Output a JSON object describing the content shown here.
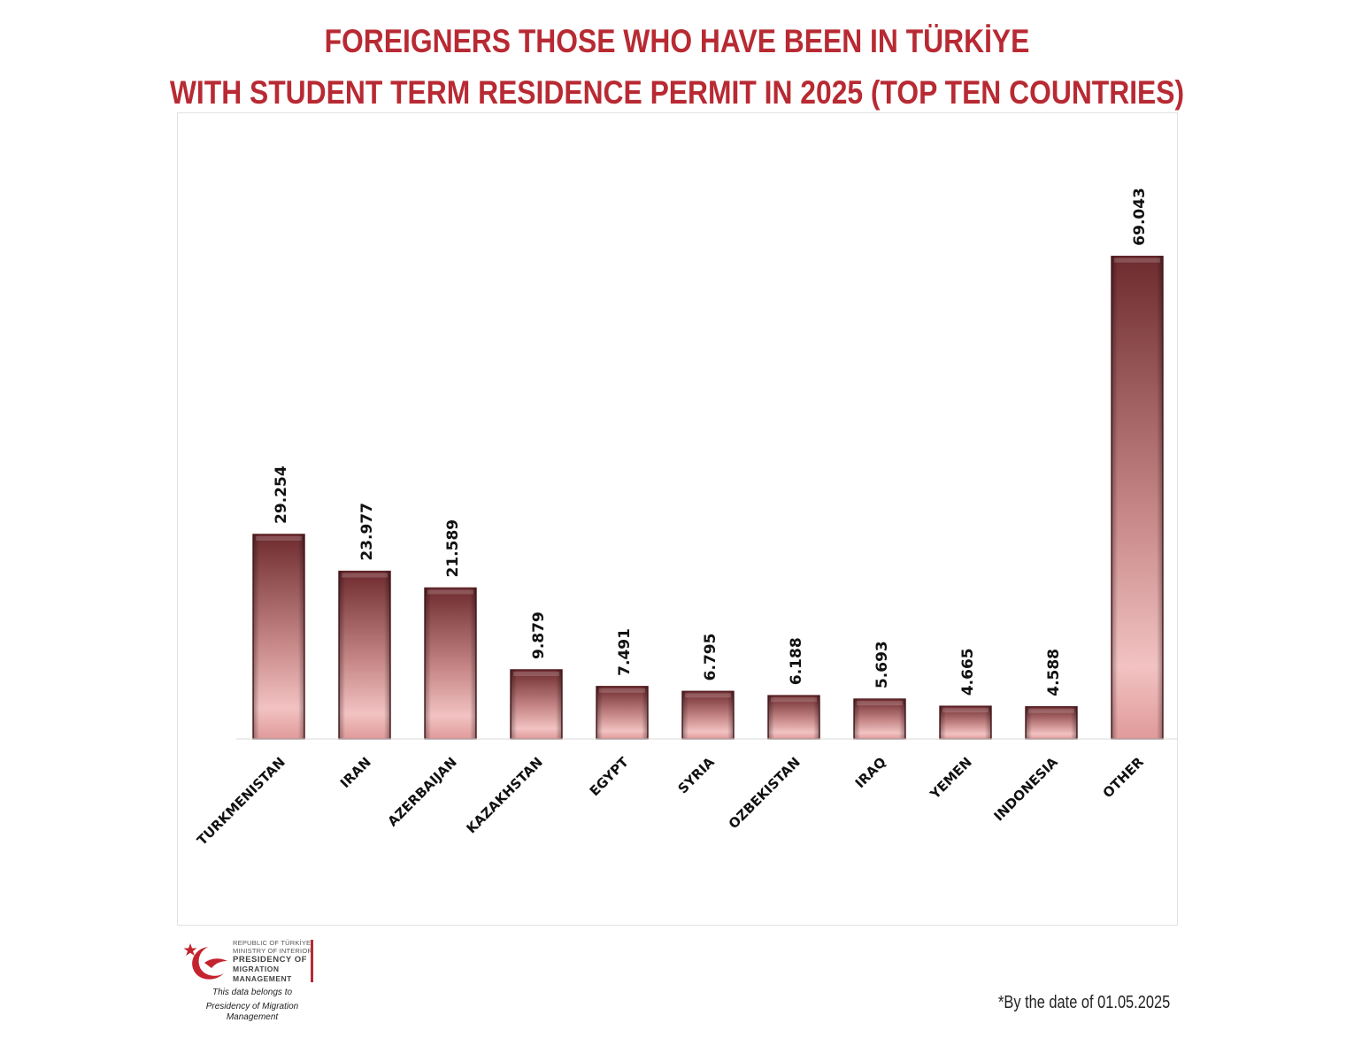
{
  "title": {
    "line1": "FOREIGNERS THOSE WHO HAVE BEEN IN TÜRKİYE",
    "line2": "WITH STUDENT TERM RESIDENCE PERMIT IN 2025 (TOP TEN COUNTRIES)"
  },
  "colors": {
    "title": "#b82a33",
    "bar_dark": "#6e2b2f",
    "bar_light": "#f2c2c2",
    "bar_border": "#5a2326"
  },
  "chart_data": {
    "type": "bar",
    "categories": [
      "TURKMENISTAN",
      "IRAN",
      "AZERBAIJAN",
      "KAZAKHSTAN",
      "EGYPT",
      "SYRIA",
      "OZBEKISTAN",
      "IRAQ",
      "YEMEN",
      "INDONESIA",
      "OTHER"
    ],
    "values": [
      29254,
      23977,
      21589,
      9879,
      7491,
      6795,
      6188,
      5693,
      4665,
      4588,
      69043
    ],
    "value_labels": [
      "29.254",
      "23.977",
      "21.589",
      "9.879",
      "7.491",
      "6.795",
      "6.188",
      "5.693",
      "4.665",
      "4.588",
      "69.043"
    ],
    "title": "FOREIGNERS THOSE WHO HAVE BEEN IN TÜRKİYE WITH STUDENT TERM RESIDENCE PERMIT IN 2025 (TOP TEN COUNTRIES)",
    "xlabel": "",
    "ylabel": "",
    "ylim": [
      0,
      88000
    ],
    "grid": false,
    "legend": "none"
  },
  "logo": {
    "line1": "REPUBLIC OF TÜRKİYE",
    "line2": "MINISTRY OF INTERIOR",
    "line3": "PRESIDENCY OF",
    "line4": "MIGRATION MANAGEMENT",
    "icon": "crescent-star-bird-icon"
  },
  "footer": {
    "belongs_line1": "This data belongs to",
    "belongs_line2": "Presidency of Migration Management",
    "date_note": "*By the date of  01.05.2025"
  }
}
